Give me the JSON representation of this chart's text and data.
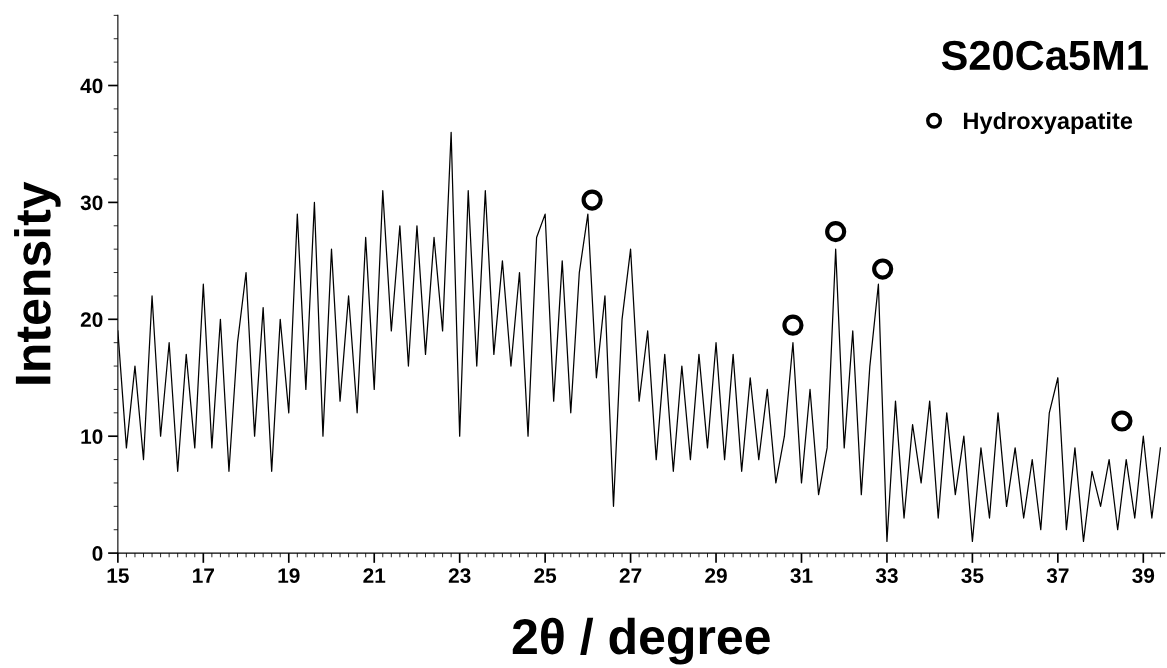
{
  "chart_data": {
    "type": "line",
    "title": "S20Ca5M1",
    "xlabel": "2θ / degree",
    "ylabel": "Intensity",
    "xlim": [
      15,
      39.5
    ],
    "ylim": [
      0,
      46
    ],
    "xticks": [
      15,
      17,
      19,
      21,
      23,
      25,
      27,
      29,
      31,
      33,
      35,
      37,
      39
    ],
    "yticks": [
      0,
      10,
      20,
      30,
      40
    ],
    "grid": false,
    "legend": "top right",
    "series": [
      {
        "color": "#000000",
        "marker": "none",
        "line_style": "solid",
        "x": [
          15.0,
          15.2,
          15.4,
          15.6,
          15.8,
          16.0,
          16.2,
          16.4,
          16.6,
          16.8,
          17.0,
          17.2,
          17.4,
          17.6,
          17.8,
          18.0,
          18.2,
          18.4,
          18.6,
          18.8,
          19.0,
          19.2,
          19.4,
          19.6,
          19.8,
          20.0,
          20.2,
          20.4,
          20.6,
          20.8,
          21.0,
          21.2,
          21.4,
          21.6,
          21.8,
          22.0,
          22.2,
          22.4,
          22.6,
          22.8,
          23.0,
          23.2,
          23.4,
          23.6,
          23.8,
          24.0,
          24.2,
          24.4,
          24.6,
          24.8,
          25.0,
          25.2,
          25.4,
          25.6,
          25.8,
          26.0,
          26.2,
          26.4,
          26.6,
          26.8,
          27.0,
          27.2,
          27.4,
          27.6,
          27.8,
          28.0,
          28.2,
          28.4,
          28.6,
          28.8,
          29.0,
          29.2,
          29.4,
          29.6,
          29.8,
          30.0,
          30.2,
          30.4,
          30.6,
          30.8,
          31.0,
          31.2,
          31.4,
          31.6,
          31.8,
          32.0,
          32.2,
          32.4,
          32.6,
          32.8,
          33.0,
          33.2,
          33.4,
          33.6,
          33.8,
          34.0,
          34.2,
          34.4,
          34.6,
          34.8,
          35.0,
          35.2,
          35.4,
          35.6,
          35.8,
          36.0,
          36.2,
          36.4,
          36.6,
          36.8,
          37.0,
          37.2,
          37.4,
          37.6,
          37.8,
          38.0,
          38.2,
          38.4,
          38.6,
          38.8,
          39.0,
          39.2,
          39.4
        ],
        "values": [
          19,
          9,
          16,
          8,
          22,
          10,
          18,
          7,
          17,
          9,
          23,
          9,
          20,
          7,
          18,
          24,
          10,
          21,
          7,
          20,
          12,
          29,
          14,
          30,
          10,
          26,
          13,
          22,
          12,
          27,
          14,
          31,
          19,
          28,
          16,
          28,
          17,
          27,
          19,
          36,
          10,
          31,
          16,
          31,
          17,
          25,
          16,
          24,
          10,
          27,
          29,
          13,
          25,
          12,
          24,
          29,
          15,
          22,
          4,
          20,
          26,
          13,
          19,
          8,
          17,
          7,
          16,
          8,
          17,
          9,
          18,
          8,
          17,
          7,
          15,
          8,
          14,
          6,
          10,
          18,
          6,
          14,
          5,
          9,
          26,
          9,
          19,
          5,
          16,
          23,
          1,
          13,
          3,
          11,
          6,
          13,
          3,
          12,
          5,
          10,
          1,
          9,
          3,
          12,
          4,
          9,
          3,
          8,
          2,
          12,
          15,
          2,
          9,
          1,
          7,
          4,
          8,
          2,
          8,
          3,
          10,
          3,
          9
        ]
      },
      {
        "type": "scatter",
        "name": "Hydroxyapatite",
        "color": "#000000",
        "marker": "circle",
        "x": [
          26.1,
          30.8,
          31.8,
          32.9,
          38.5
        ],
        "values": [
          30.2,
          19.5,
          27.5,
          24.3,
          11.3
        ]
      }
    ]
  }
}
